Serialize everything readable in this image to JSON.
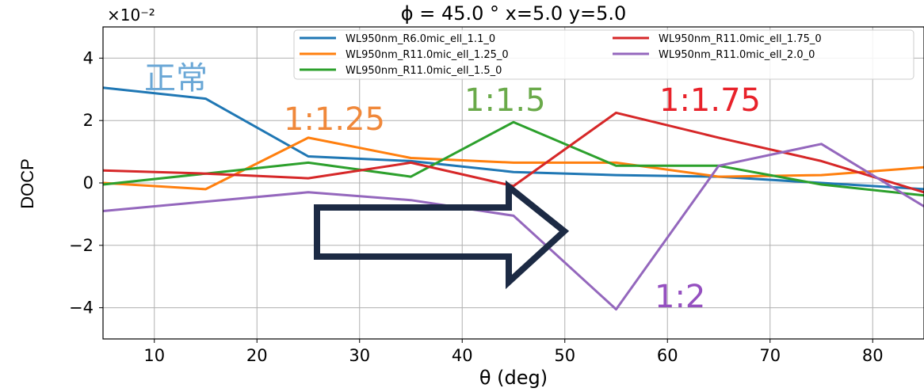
{
  "chart_data": {
    "type": "line",
    "title": "ϕ = 45.0 °    x=5.0  y=5.0",
    "xlabel": "θ (deg)",
    "ylabel": "DOCP",
    "y_offset_label": "×10⁻²",
    "xlim": [
      5,
      85
    ],
    "ylim": [
      -5,
      5
    ],
    "xticks": [
      10,
      20,
      30,
      40,
      50,
      60,
      70,
      80
    ],
    "yticks": [
      -4,
      -2,
      0,
      2,
      4
    ],
    "ytick_labels": [
      "−4",
      "−2",
      "0",
      "2",
      "4"
    ],
    "grid": true,
    "legend_position": "top-right",
    "x": [
      5,
      15,
      25,
      35,
      45,
      55,
      65,
      75,
      85
    ],
    "series": [
      {
        "name": "WL950nm_R6.0mic_ell_1.1_0",
        "color": "#1f77b4",
        "values": [
          3.05,
          2.7,
          0.85,
          0.7,
          0.35,
          0.25,
          0.2,
          0.0,
          -0.2
        ]
      },
      {
        "name": "WL950nm_R11.0mic_ell_1.25_0",
        "color": "#ff7f0e",
        "values": [
          0.0,
          -0.2,
          1.45,
          0.8,
          0.65,
          0.65,
          0.2,
          0.25,
          0.5
        ]
      },
      {
        "name": "WL950nm_R11.0mic_ell_1.5_0",
        "color": "#2ca02c",
        "values": [
          -0.05,
          0.3,
          0.65,
          0.2,
          1.95,
          0.55,
          0.55,
          -0.05,
          -0.4
        ]
      },
      {
        "name": "WL950nm_R11.0mic_ell_1.75_0",
        "color": "#d62728",
        "values": [
          0.4,
          0.3,
          0.15,
          0.65,
          -0.1,
          2.25,
          1.45,
          0.7,
          -0.3
        ]
      },
      {
        "name": "WL950nm_R11.0mic_ell_2.0_0",
        "color": "#9467bd",
        "values": [
          -0.9,
          -0.6,
          -0.3,
          -0.55,
          -1.05,
          -4.05,
          0.55,
          1.25,
          -0.75
        ]
      }
    ],
    "annotations": [
      {
        "text": "正常",
        "color": "#6aa7d6"
      },
      {
        "text": "1:1.25",
        "color": "#f0883a"
      },
      {
        "text": "1:1.5",
        "color": "#6aaa4a"
      },
      {
        "text": "1:1.75",
        "color": "#e8222a"
      },
      {
        "text": "1:2",
        "color": "#9550c0"
      }
    ],
    "arrow_color": "#1c2a44"
  }
}
